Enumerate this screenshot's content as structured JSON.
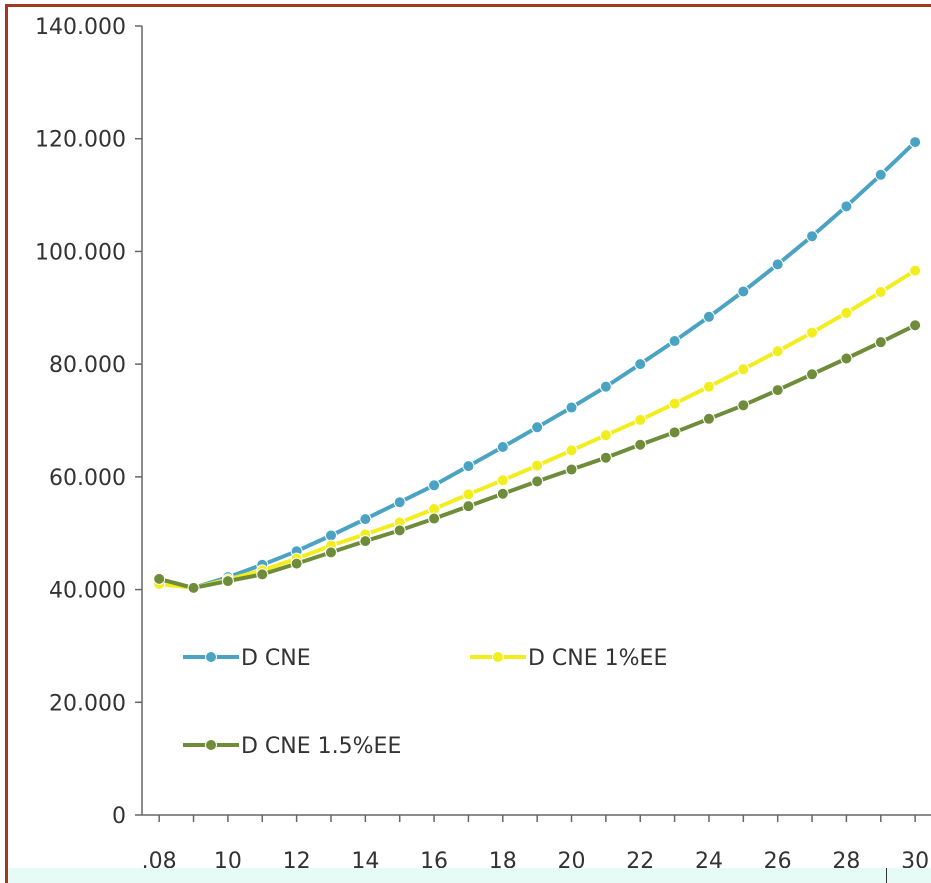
{
  "chart_data": {
    "type": "line",
    "ylim": [
      0,
      140000
    ],
    "xlim": [
      2007.5,
      2030.2
    ],
    "yticks": [
      "0",
      "20.000",
      "40.000",
      "60.000",
      "80.000",
      "100.000",
      "120.000",
      "140.000"
    ],
    "xticks": [
      {
        "label": ".08",
        "x": 2008
      },
      {
        "label": "10",
        "x": 2010
      },
      {
        "label": "12",
        "x": 2012
      },
      {
        "label": "14",
        "x": 2014
      },
      {
        "label": "16",
        "x": 2016
      },
      {
        "label": "18",
        "x": 2018
      },
      {
        "label": "20",
        "x": 2020
      },
      {
        "label": "22",
        "x": 2022
      },
      {
        "label": "24",
        "x": 2024
      },
      {
        "label": "26",
        "x": 2026
      },
      {
        "label": "28",
        "x": 2028
      },
      {
        "label": "30",
        "x": 2030
      }
    ],
    "x": [
      2008,
      2009,
      2010,
      2011,
      2012,
      2013,
      2014,
      2015,
      2016,
      2017,
      2018,
      2019,
      2020,
      2021,
      2022,
      2023,
      2024,
      2025,
      2026,
      2027,
      2028,
      2029,
      2030
    ],
    "series": [
      {
        "name": "D CNE",
        "color": "#4aa3c2",
        "values": [
          41800,
          40300,
          42200,
          44400,
          46800,
          49600,
          52500,
          55500,
          58500,
          61900,
          65300,
          68800,
          72300,
          76000,
          80000,
          84100,
          88400,
          92900,
          97700,
          102700,
          108000,
          113600,
          119400
        ]
      },
      {
        "name": "D CNE 1%EE",
        "color": "#f2ee1e",
        "values": [
          41000,
          40300,
          41800,
          43400,
          45500,
          47800,
          49800,
          51900,
          54300,
          56900,
          59400,
          62000,
          64700,
          67400,
          70100,
          73000,
          76000,
          79100,
          82300,
          85600,
          89100,
          92800,
          96600
        ]
      },
      {
        "name": "D CNE 1.5%EE",
        "color": "#6e8c3a",
        "values": [
          41900,
          40300,
          41500,
          42700,
          44600,
          46600,
          48600,
          50500,
          52600,
          54800,
          57000,
          59200,
          61300,
          63400,
          65700,
          67900,
          70300,
          72700,
          75400,
          78200,
          81000,
          83900,
          86900
        ]
      }
    ],
    "legend": {
      "placement": "lower-left inside plot"
    },
    "grid": false
  }
}
